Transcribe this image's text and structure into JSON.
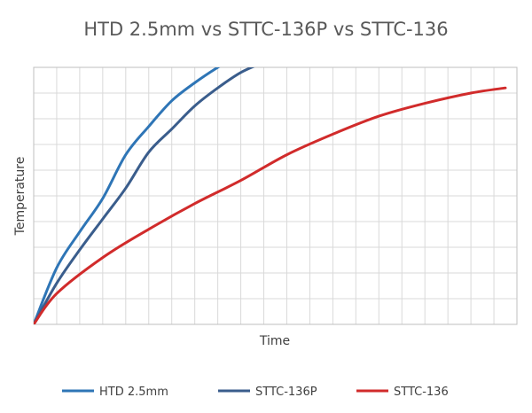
{
  "chart_data": {
    "type": "line",
    "title": "HTD 2.5mm vs STTC-136P vs STTC-136",
    "xlabel": "Time",
    "ylabel": "Temperature",
    "xlim": [
      0,
      21
    ],
    "ylim": [
      0,
      10
    ],
    "grid": true,
    "legend_position": "bottom",
    "series": [
      {
        "name": "HTD 2.5mm",
        "color": "#2e75b6",
        "x": [
          0,
          1,
          2,
          3,
          4,
          5,
          6,
          7,
          8,
          8.6
        ],
        "y": [
          0,
          2.2,
          3.6,
          4.9,
          6.6,
          7.7,
          8.7,
          9.4,
          10,
          10.3
        ]
      },
      {
        "name": "STTC-136P",
        "color": "#3a5d8c",
        "x": [
          0,
          1,
          2,
          3,
          4,
          5,
          6,
          7,
          8,
          9,
          10
        ],
        "y": [
          0,
          1.6,
          2.9,
          4.1,
          5.3,
          6.7,
          7.6,
          8.5,
          9.2,
          9.8,
          10.2
        ]
      },
      {
        "name": "STTC-136",
        "color": "#d12b2b",
        "x": [
          0,
          1,
          3,
          5,
          7,
          9,
          11,
          13,
          15,
          17,
          19,
          20.5
        ],
        "y": [
          0,
          1.2,
          2.6,
          3.7,
          4.7,
          5.6,
          6.6,
          7.4,
          8.1,
          8.6,
          9.0,
          9.2
        ]
      }
    ]
  }
}
